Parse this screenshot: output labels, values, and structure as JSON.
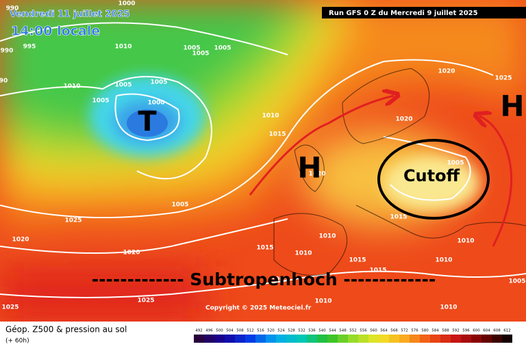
{
  "header": {
    "valid_date": "Vendredi 11 juillet 2025",
    "local_time": "14:00 locale",
    "run": "Run GFS 0 Z du Mercredi 9 juillet 2025"
  },
  "copyright": "Copyright © 2025 Meteociel.fr",
  "footer": {
    "title": "Géop. Z500 & pression au sol",
    "lead": "(+ 60h)"
  },
  "annotations": {
    "low": "T",
    "high_west": "H",
    "high_east": "H",
    "cutoff": "Cutoff",
    "subtropical": "------------- Subtropenhoch -------------"
  },
  "pressure_labels": [
    "990",
    "1000",
    "995",
    "990",
    "90",
    "1010",
    "1005",
    "1005",
    "1005",
    "1010",
    "1005",
    "1005",
    "1005",
    "1000",
    "1010",
    "1015",
    "1020",
    "1025",
    "1020",
    "1005",
    "1020",
    "1005",
    "1025",
    "1020",
    "1015",
    "1015",
    "1010",
    "1010",
    "1010",
    "1020",
    "1015",
    "1010",
    "1015",
    "1005",
    "1025",
    "1025",
    "1010",
    "1010",
    "1005"
  ],
  "scale": [
    492,
    496,
    500,
    504,
    508,
    512,
    516,
    520,
    524,
    528,
    532,
    536,
    540,
    544,
    548,
    552,
    556,
    560,
    564,
    568,
    572,
    576,
    580,
    584,
    588,
    592,
    596,
    600,
    604,
    608,
    612
  ]
}
